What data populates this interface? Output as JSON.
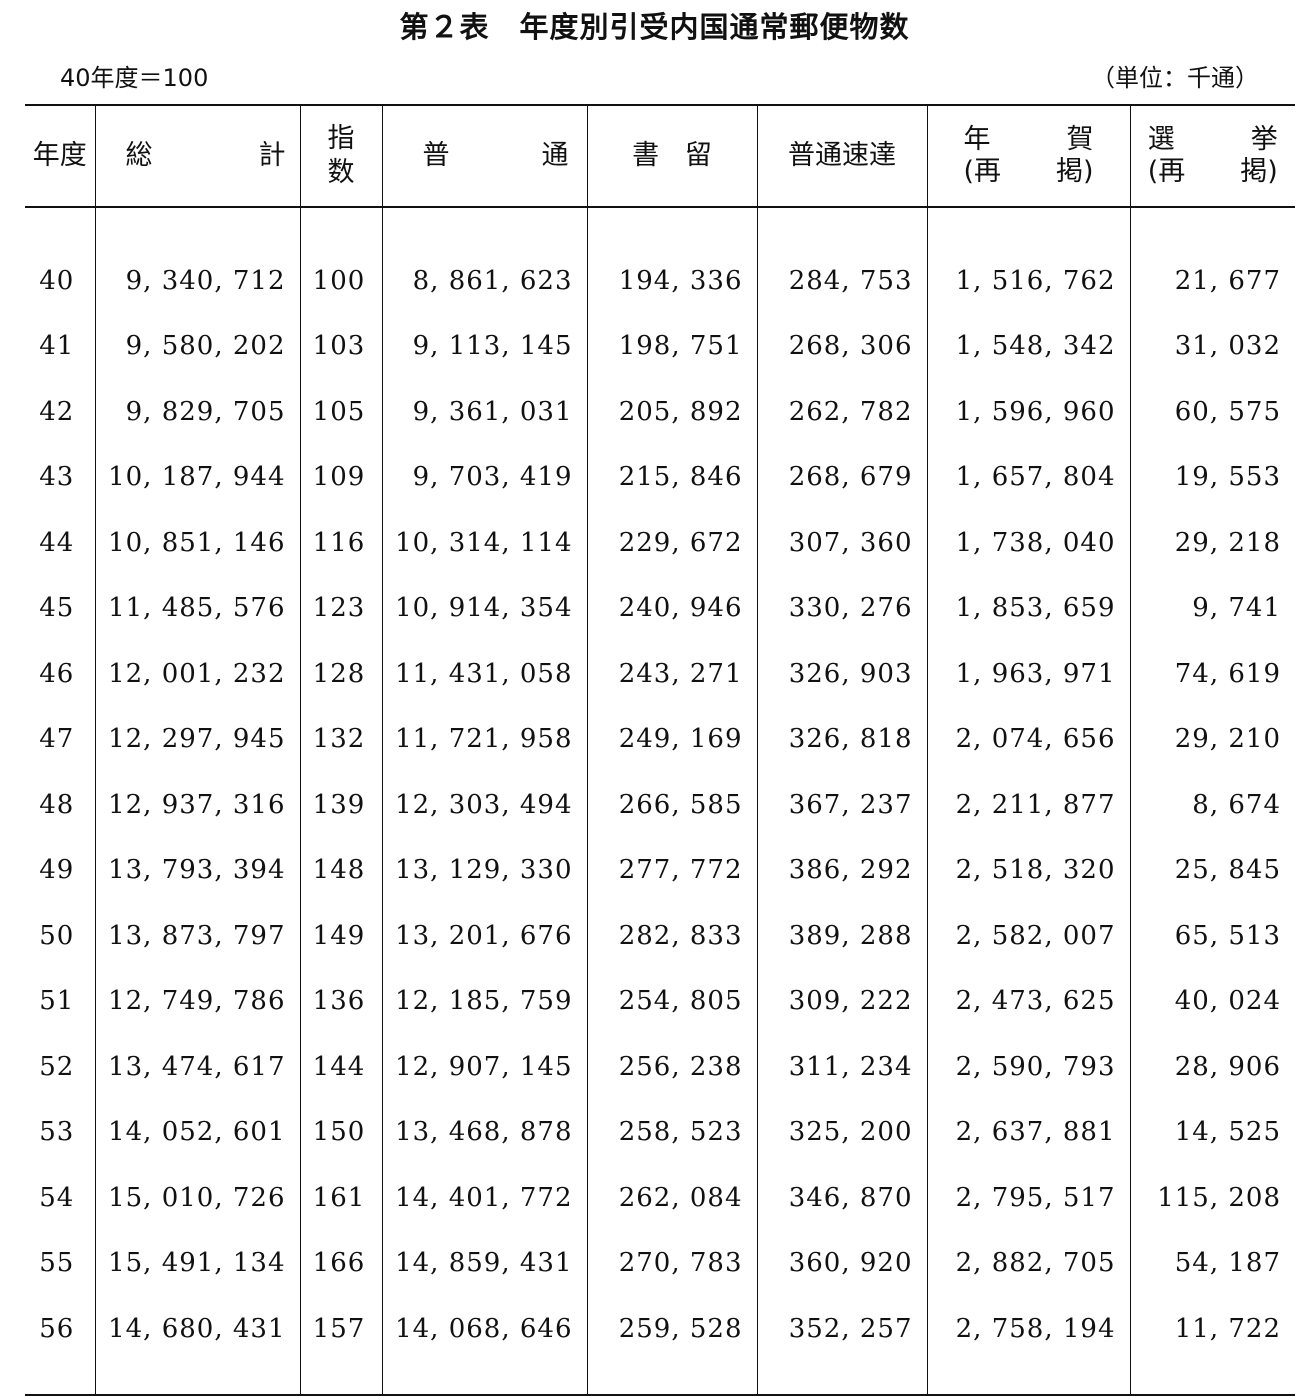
{
  "title": "第２表　年度別引受内国通常郵便物数",
  "base_note": "40年度＝100",
  "unit_note": "（単位：千通）",
  "headers": {
    "year": "年度",
    "total_a": "総",
    "total_b": "計",
    "index_a": "指",
    "index_b": "数",
    "ordinary_a": "普",
    "ordinary_b": "通",
    "registered_a": "書",
    "registered_b": "留",
    "express": "普通速達",
    "newyear_a": "年",
    "newyear_b": "賀",
    "newyear_c": "(再",
    "newyear_d": "掲)",
    "election_a": "選",
    "election_b": "挙",
    "election_c": "(再",
    "election_d": "掲)"
  },
  "rows": [
    {
      "year": "40",
      "total": "9, 340, 712",
      "index": "100",
      "ordinary": "8, 861, 623",
      "registered": "194, 336",
      "express": "284, 753",
      "newyear": "1, 516, 762",
      "election": "21, 677"
    },
    {
      "year": "41",
      "total": "9, 580, 202",
      "index": "103",
      "ordinary": "9, 113, 145",
      "registered": "198, 751",
      "express": "268, 306",
      "newyear": "1, 548, 342",
      "election": "31, 032"
    },
    {
      "year": "42",
      "total": "9, 829, 705",
      "index": "105",
      "ordinary": "9, 361, 031",
      "registered": "205, 892",
      "express": "262, 782",
      "newyear": "1, 596, 960",
      "election": "60, 575"
    },
    {
      "year": "43",
      "total": "10, 187, 944",
      "index": "109",
      "ordinary": "9, 703, 419",
      "registered": "215, 846",
      "express": "268, 679",
      "newyear": "1, 657, 804",
      "election": "19, 553"
    },
    {
      "year": "44",
      "total": "10, 851, 146",
      "index": "116",
      "ordinary": "10, 314, 114",
      "registered": "229, 672",
      "express": "307, 360",
      "newyear": "1, 738, 040",
      "election": "29, 218"
    },
    {
      "year": "45",
      "total": "11, 485, 576",
      "index": "123",
      "ordinary": "10, 914, 354",
      "registered": "240, 946",
      "express": "330, 276",
      "newyear": "1, 853, 659",
      "election": "9, 741"
    },
    {
      "year": "46",
      "total": "12, 001, 232",
      "index": "128",
      "ordinary": "11, 431, 058",
      "registered": "243, 271",
      "express": "326, 903",
      "newyear": "1, 963, 971",
      "election": "74, 619"
    },
    {
      "year": "47",
      "total": "12, 297, 945",
      "index": "132",
      "ordinary": "11, 721, 958",
      "registered": "249, 169",
      "express": "326, 818",
      "newyear": "2, 074, 656",
      "election": "29, 210"
    },
    {
      "year": "48",
      "total": "12, 937, 316",
      "index": "139",
      "ordinary": "12, 303, 494",
      "registered": "266, 585",
      "express": "367, 237",
      "newyear": "2, 211, 877",
      "election": "8, 674"
    },
    {
      "year": "49",
      "total": "13, 793, 394",
      "index": "148",
      "ordinary": "13, 129, 330",
      "registered": "277, 772",
      "express": "386, 292",
      "newyear": "2, 518, 320",
      "election": "25, 845"
    },
    {
      "year": "50",
      "total": "13, 873, 797",
      "index": "149",
      "ordinary": "13, 201, 676",
      "registered": "282, 833",
      "express": "389, 288",
      "newyear": "2, 582, 007",
      "election": "65, 513"
    },
    {
      "year": "51",
      "total": "12, 749, 786",
      "index": "136",
      "ordinary": "12, 185, 759",
      "registered": "254, 805",
      "express": "309, 222",
      "newyear": "2, 473, 625",
      "election": "40, 024"
    },
    {
      "year": "52",
      "total": "13, 474, 617",
      "index": "144",
      "ordinary": "12, 907, 145",
      "registered": "256, 238",
      "express": "311, 234",
      "newyear": "2, 590, 793",
      "election": "28, 906"
    },
    {
      "year": "53",
      "total": "14, 052, 601",
      "index": "150",
      "ordinary": "13, 468, 878",
      "registered": "258, 523",
      "express": "325, 200",
      "newyear": "2, 637, 881",
      "election": "14, 525"
    },
    {
      "year": "54",
      "total": "15, 010, 726",
      "index": "161",
      "ordinary": "14, 401, 772",
      "registered": "262, 084",
      "express": "346, 870",
      "newyear": "2, 795, 517",
      "election": "115, 208"
    },
    {
      "year": "55",
      "total": "15, 491, 134",
      "index": "166",
      "ordinary": "14, 859, 431",
      "registered": "270, 783",
      "express": "360, 920",
      "newyear": "2, 882, 705",
      "election": "54, 187"
    },
    {
      "year": "56",
      "total": "14, 680, 431",
      "index": "157",
      "ordinary": "14, 068, 646",
      "registered": "259, 528",
      "express": "352, 257",
      "newyear": "2, 758, 194",
      "election": "11, 722"
    }
  ]
}
